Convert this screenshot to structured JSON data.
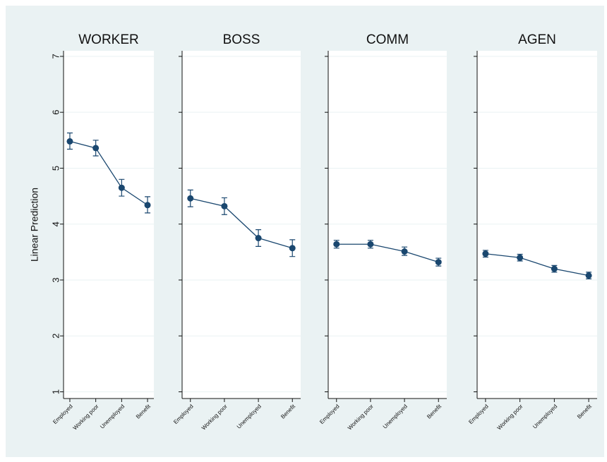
{
  "chart_data": [
    {
      "type": "line",
      "title": "WORKER",
      "ylabel": "Linear Prediction",
      "show_ytick_labels": true,
      "categories": [
        "Employed",
        "Working poor",
        "Unemployed",
        "Benefit"
      ],
      "series": [
        {
          "color": "#1a476f",
          "values": [
            5.48,
            5.36,
            4.65,
            4.34
          ],
          "ci_low": [
            5.34,
            5.22,
            4.5,
            4.2
          ],
          "ci_high": [
            5.63,
            5.5,
            4.8,
            4.49
          ]
        }
      ],
      "ylim": [
        0.88,
        7.1
      ],
      "yticks": [
        1,
        2,
        3,
        4,
        5,
        6,
        7
      ],
      "grid": true
    },
    {
      "type": "line",
      "title": "BOSS",
      "show_ytick_labels": false,
      "categories": [
        "Employed",
        "Working poor",
        "Unemployed",
        "Benefit"
      ],
      "series": [
        {
          "color": "#1a476f",
          "values": [
            4.46,
            4.32,
            3.75,
            3.57
          ],
          "ci_low": [
            4.31,
            4.17,
            3.6,
            3.42
          ],
          "ci_high": [
            4.61,
            4.47,
            3.9,
            3.72
          ]
        }
      ],
      "ylim": [
        0.88,
        7.1
      ],
      "yticks": [
        1,
        2,
        3,
        4,
        5,
        6,
        7
      ],
      "grid": true
    },
    {
      "type": "line",
      "title": "COMM",
      "show_ytick_labels": false,
      "categories": [
        "Employed",
        "Working poor",
        "Unemployed",
        "Benefit"
      ],
      "series": [
        {
          "color": "#1a476f",
          "values": [
            3.64,
            3.64,
            3.51,
            3.32
          ],
          "ci_low": [
            3.57,
            3.57,
            3.44,
            3.25
          ],
          "ci_high": [
            3.71,
            3.71,
            3.59,
            3.39
          ]
        }
      ],
      "ylim": [
        0.88,
        7.1
      ],
      "yticks": [
        1,
        2,
        3,
        4,
        5,
        6,
        7
      ],
      "grid": true
    },
    {
      "type": "line",
      "title": "AGEN",
      "show_ytick_labels": false,
      "categories": [
        "Employed",
        "Working poor",
        "Unemployed",
        "Benefit"
      ],
      "series": [
        {
          "color": "#1a476f",
          "values": [
            3.47,
            3.4,
            3.2,
            3.08
          ],
          "ci_low": [
            3.41,
            3.34,
            3.14,
            3.02
          ],
          "ci_high": [
            3.53,
            3.46,
            3.26,
            3.14
          ]
        }
      ],
      "ylim": [
        0.88,
        7.1
      ],
      "yticks": [
        1,
        2,
        3,
        4,
        5,
        6,
        7
      ],
      "grid": true
    }
  ]
}
